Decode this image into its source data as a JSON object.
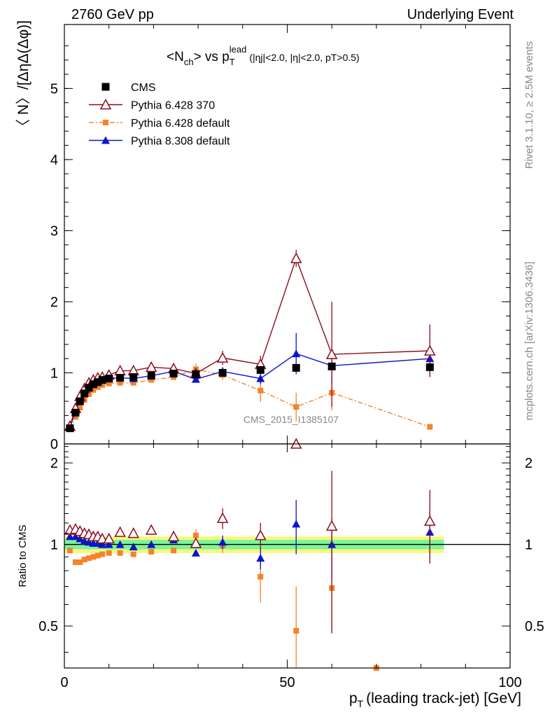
{
  "header": {
    "energy_label": "2760 GeV pp",
    "event_label": "Underlying Event"
  },
  "side_labels": {
    "rivet": "Rivet 3.1.10, ≥ 2.5M events",
    "mcplots": "mcplots.cern.ch [arXiv:1306.3436]"
  },
  "chart_data": [
    {
      "type": "scatter",
      "panel": "main",
      "title": {
        "n": "<N",
        "n_sub": "ch",
        "vs": "> vs p",
        "p_sub": "T",
        "p_sup": "lead",
        "cuts": "(|ηj|<2.0, |η|<2.0, pT>0.5)"
      },
      "ylabel": "〈 N〉/[ΔηΔ(Δφ)]",
      "xlabel": "pT (leading track-jet) [GeV]",
      "xlim": [
        0,
        100
      ],
      "ylim": [
        0,
        5.9
      ],
      "x_ticks": [
        "0",
        "50",
        "100"
      ],
      "y_ticks": [
        "0",
        "1",
        "2",
        "3",
        "4",
        "5"
      ],
      "watermark": "CMS_2015_I1385107",
      "legend_position": "top-left",
      "series": [
        {
          "name": "CMS",
          "color": "#000000",
          "marker": "square",
          "points": [
            {
              "x": 1.25,
              "y": 0.22
            },
            {
              "x": 2.5,
              "y": 0.44
            },
            {
              "x": 3.5,
              "y": 0.6
            },
            {
              "x": 4.5,
              "y": 0.71
            },
            {
              "x": 5.5,
              "y": 0.79
            },
            {
              "x": 6.5,
              "y": 0.84
            },
            {
              "x": 7.5,
              "y": 0.87
            },
            {
              "x": 8.5,
              "y": 0.9
            },
            {
              "x": 10,
              "y": 0.92
            },
            {
              "x": 12.5,
              "y": 0.93
            },
            {
              "x": 15.5,
              "y": 0.94
            },
            {
              "x": 19.5,
              "y": 0.96
            },
            {
              "x": 24.5,
              "y": 0.99
            },
            {
              "x": 29.5,
              "y": 0.98
            },
            {
              "x": 35.5,
              "y": 1.0
            },
            {
              "x": 44,
              "y": 1.04
            },
            {
              "x": 52,
              "y": 1.07
            },
            {
              "x": 60,
              "y": 1.09
            },
            {
              "x": 82,
              "y": 1.08
            }
          ]
        },
        {
          "name": "Pythia 6.428 370",
          "color": "#8b0d1c",
          "marker": "triangle-open",
          "line": "solid",
          "points": [
            {
              "x": 1.25,
              "y": 0.25
            },
            {
              "x": 2.5,
              "y": 0.5
            },
            {
              "x": 3.5,
              "y": 0.67
            },
            {
              "x": 4.5,
              "y": 0.78
            },
            {
              "x": 5.5,
              "y": 0.86
            },
            {
              "x": 6.5,
              "y": 0.9
            },
            {
              "x": 7.5,
              "y": 0.93
            },
            {
              "x": 8.5,
              "y": 0.94
            },
            {
              "x": 10,
              "y": 0.97
            },
            {
              "x": 12.5,
              "y": 1.03
            },
            {
              "x": 15.5,
              "y": 1.03
            },
            {
              "x": 19.5,
              "y": 1.08
            },
            {
              "x": 24.5,
              "y": 1.06
            },
            {
              "x": 29.5,
              "y": 0.99
            },
            {
              "x": 35.5,
              "y": 1.21,
              "err": 0.1
            },
            {
              "x": 44,
              "y": 1.12,
              "err": 0.12
            },
            {
              "x": 52,
              "y": 2.61,
              "err": 0.12
            },
            {
              "x": 60,
              "y": 1.26,
              "err": 0.74
            },
            {
              "x": 82,
              "y": 1.31,
              "err": 0.37
            }
          ]
        },
        {
          "name": "Pythia 6.428 default",
          "color": "#f5832b",
          "marker": "square-small",
          "line": "dashdot",
          "points": [
            {
              "x": 1.25,
              "y": 0.21
            },
            {
              "x": 2.5,
              "y": 0.38
            },
            {
              "x": 3.5,
              "y": 0.51
            },
            {
              "x": 4.5,
              "y": 0.62
            },
            {
              "x": 5.5,
              "y": 0.7
            },
            {
              "x": 6.5,
              "y": 0.76
            },
            {
              "x": 7.5,
              "y": 0.8
            },
            {
              "x": 8.5,
              "y": 0.83
            },
            {
              "x": 10,
              "y": 0.85
            },
            {
              "x": 12.5,
              "y": 0.86
            },
            {
              "x": 15.5,
              "y": 0.86
            },
            {
              "x": 19.5,
              "y": 0.9
            },
            {
              "x": 24.5,
              "y": 0.94
            },
            {
              "x": 29.5,
              "y": 1.05,
              "err": 0.08
            },
            {
              "x": 35.5,
              "y": 0.97,
              "err": 0.07
            },
            {
              "x": 44,
              "y": 0.75,
              "err": 0.16
            },
            {
              "x": 52,
              "y": 0.52,
              "err": 0.2
            },
            {
              "x": 60,
              "y": 0.72,
              "err": 0.25
            },
            {
              "x": 82,
              "y": 0.24
            }
          ]
        },
        {
          "name": "Pythia 8.308 default",
          "color": "#0a14cc",
          "marker": "triangle-filled",
          "line": "solid",
          "points": [
            {
              "x": 1.25,
              "y": 0.23
            },
            {
              "x": 2.5,
              "y": 0.47
            },
            {
              "x": 3.5,
              "y": 0.63
            },
            {
              "x": 4.5,
              "y": 0.73
            },
            {
              "x": 5.5,
              "y": 0.8
            },
            {
              "x": 6.5,
              "y": 0.85
            },
            {
              "x": 7.5,
              "y": 0.88
            },
            {
              "x": 8.5,
              "y": 0.9
            },
            {
              "x": 10,
              "y": 0.92
            },
            {
              "x": 12.5,
              "y": 0.93
            },
            {
              "x": 15.5,
              "y": 0.92
            },
            {
              "x": 19.5,
              "y": 0.96
            },
            {
              "x": 24.5,
              "y": 1.02
            },
            {
              "x": 29.5,
              "y": 0.91
            },
            {
              "x": 35.5,
              "y": 1.02,
              "err": 0.06
            },
            {
              "x": 44,
              "y": 0.92,
              "err": 0.08
            },
            {
              "x": 52,
              "y": 1.27,
              "err": 0.29
            },
            {
              "x": 60,
              "y": 1.1,
              "err": 0.26
            },
            {
              "x": 82,
              "y": 1.2,
              "err": 0.23
            }
          ]
        }
      ]
    },
    {
      "type": "scatter",
      "panel": "ratio",
      "ylabel": "Ratio to CMS",
      "xlim": [
        0,
        100
      ],
      "ylim": [
        0.35,
        2.35
      ],
      "y_ticks": [
        "0.5",
        "1",
        "2"
      ],
      "reference_line": 1.0,
      "uncertainty_band": {
        "inner": 0.04,
        "outer": 0.07,
        "inner_color": "#7df59a",
        "outer_color": "#f6f77d"
      },
      "series": [
        {
          "name": "Pythia 6.428 370",
          "color": "#8b0d1c",
          "marker": "triangle-open",
          "points": [
            {
              "x": 1.25,
              "y": 1.13
            },
            {
              "x": 2.5,
              "y": 1.14
            },
            {
              "x": 3.5,
              "y": 1.12
            },
            {
              "x": 4.5,
              "y": 1.1
            },
            {
              "x": 5.5,
              "y": 1.09
            },
            {
              "x": 6.5,
              "y": 1.07
            },
            {
              "x": 7.5,
              "y": 1.07
            },
            {
              "x": 8.5,
              "y": 1.05
            },
            {
              "x": 10,
              "y": 1.05
            },
            {
              "x": 12.5,
              "y": 1.11
            },
            {
              "x": 15.5,
              "y": 1.1
            },
            {
              "x": 19.5,
              "y": 1.13
            },
            {
              "x": 24.5,
              "y": 1.07
            },
            {
              "x": 29.5,
              "y": 1.01
            },
            {
              "x": 35.5,
              "y": 1.25,
              "err": 0.11
            },
            {
              "x": 44,
              "y": 1.08,
              "err": 0.12
            },
            {
              "x": 52,
              "y": 2.35
            },
            {
              "x": 60,
              "y": 1.17,
              "err": 0.7
            },
            {
              "x": 82,
              "y": 1.22,
              "err": 0.37
            }
          ]
        },
        {
          "name": "Pythia 6.428 default",
          "color": "#f5832b",
          "marker": "square-small",
          "points": [
            {
              "x": 1.25,
              "y": 0.95
            },
            {
              "x": 2.5,
              "y": 0.86
            },
            {
              "x": 3.5,
              "y": 0.86
            },
            {
              "x": 4.5,
              "y": 0.88
            },
            {
              "x": 5.5,
              "y": 0.89
            },
            {
              "x": 6.5,
              "y": 0.9
            },
            {
              "x": 7.5,
              "y": 0.91
            },
            {
              "x": 8.5,
              "y": 0.92
            },
            {
              "x": 10,
              "y": 0.93
            },
            {
              "x": 12.5,
              "y": 0.93
            },
            {
              "x": 15.5,
              "y": 0.92
            },
            {
              "x": 19.5,
              "y": 0.94
            },
            {
              "x": 24.5,
              "y": 0.95
            },
            {
              "x": 29.5,
              "y": 1.08,
              "err": 0.06
            },
            {
              "x": 35.5,
              "y": 0.99,
              "err": 0.06
            },
            {
              "x": 44,
              "y": 0.76,
              "err": 0.15
            },
            {
              "x": 52,
              "y": 0.48,
              "err": 0.22
            },
            {
              "x": 60,
              "y": 0.69,
              "err": 0.22
            },
            {
              "x": 70,
              "y": 0.3
            }
          ]
        },
        {
          "name": "Pythia 8.308 default",
          "color": "#0a14cc",
          "marker": "triangle-filled",
          "points": [
            {
              "x": 1.25,
              "y": 1.07
            },
            {
              "x": 2.5,
              "y": 1.07
            },
            {
              "x": 3.5,
              "y": 1.05
            },
            {
              "x": 4.5,
              "y": 1.03
            },
            {
              "x": 5.5,
              "y": 1.02
            },
            {
              "x": 6.5,
              "y": 1.01
            },
            {
              "x": 7.5,
              "y": 1.01
            },
            {
              "x": 8.5,
              "y": 1.0
            },
            {
              "x": 10,
              "y": 1.0
            },
            {
              "x": 12.5,
              "y": 1.0
            },
            {
              "x": 15.5,
              "y": 0.98
            },
            {
              "x": 19.5,
              "y": 1.0
            },
            {
              "x": 24.5,
              "y": 1.04
            },
            {
              "x": 29.5,
              "y": 0.93
            },
            {
              "x": 35.5,
              "y": 1.02,
              "err": 0.06
            },
            {
              "x": 44,
              "y": 0.89,
              "err": 0.08
            },
            {
              "x": 52,
              "y": 1.19,
              "err": 0.27
            },
            {
              "x": 60,
              "y": 1.0,
              "err": 0.25
            },
            {
              "x": 82,
              "y": 1.11,
              "err": 0.22
            }
          ]
        }
      ]
    }
  ]
}
